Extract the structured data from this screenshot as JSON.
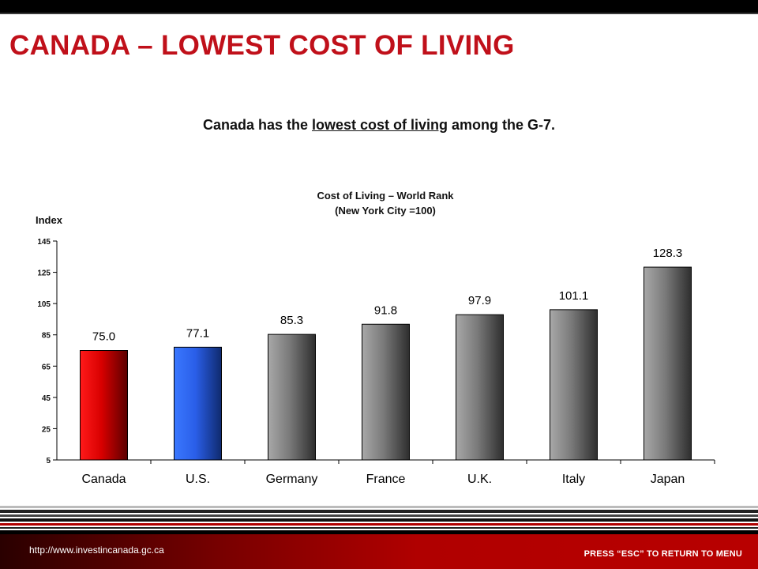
{
  "slide": {
    "title": "CANADA – LOWEST COST OF LIVING",
    "subtitle_before": "Canada has the ",
    "subtitle_underlined": "lowest cost of living",
    "subtitle_after": " among the G-7."
  },
  "footer": {
    "url": "http://www.investincanada.gc.ca",
    "menu_hint": "PRESS “ESC” TO RETURN TO MENU"
  },
  "colors": {
    "title_red": "#c0101a",
    "canada_bar": "#e00000",
    "us_bar": "#2a5ee8",
    "other_bar": "#7a7a7a"
  },
  "chart_data": {
    "type": "bar",
    "title": "Cost of Living – World Rank",
    "subtitle": "(New York City =100)",
    "ylabel": "Index",
    "xlabel": "",
    "categories": [
      "Canada",
      "U.S.",
      "Germany",
      "France",
      "U.K.",
      "Italy",
      "Japan"
    ],
    "values": [
      75.0,
      77.1,
      85.3,
      91.8,
      97.9,
      101.1,
      128.3
    ],
    "value_labels": [
      "75.0",
      "77.1",
      "85.3",
      "91.8",
      "97.9",
      "101.1",
      "128.3"
    ],
    "bar_colors": [
      "red",
      "blue",
      "gray",
      "gray",
      "gray",
      "gray",
      "gray"
    ],
    "ylim": [
      5,
      145
    ],
    "yticks": [
      5,
      25,
      45,
      65,
      85,
      105,
      125,
      145
    ],
    "grid": false,
    "legend": "none"
  }
}
